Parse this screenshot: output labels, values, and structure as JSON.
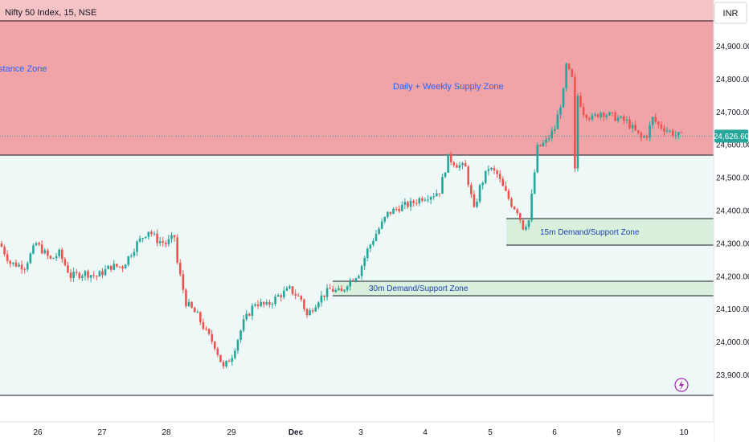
{
  "header": {
    "symbol_title": "Nifty 50 Index, 15, NSE",
    "currency": "INR"
  },
  "colors": {
    "up": "#26a69a",
    "down": "#ef5350",
    "supply_zone": "#f0a4a8",
    "supply_zone_top": "#f5c2c6",
    "demand_zone": "#d9f0dc",
    "lower_band": "#eef8f7",
    "price_tag": "#26a69a",
    "zone_text": "#2962ff"
  },
  "zones": {
    "resistance_label": "stance Zone",
    "supply_label": "Daily + Weekly Supply Zone",
    "demand_15m_label": "15m Demand/Support Zone",
    "demand_30m_label": "30m Demand/Support Zone"
  },
  "chart_data": {
    "type": "candlestick",
    "title": "Nifty 50 Index, 15, NSE",
    "y_ticks": [
      "24,900.00",
      "24,800.00",
      "24,700.00",
      "24,600.00",
      "24,500.00",
      "24,400.00",
      "24,300.00",
      "24,200.00",
      "24,100.00",
      "24,000.00",
      "23,900.00"
    ],
    "y_tick_values": [
      24900,
      24800,
      24700,
      24600,
      24500,
      24400,
      24300,
      24200,
      24100,
      24000,
      23900
    ],
    "ylim": [
      23800,
      25000
    ],
    "x_ticks": [
      "26",
      "27",
      "28",
      "29",
      "Dec",
      "3",
      "4",
      "5",
      "6",
      "9",
      "10"
    ],
    "last_price": "24,626.60",
    "last_price_value": 24626.6,
    "zones": [
      {
        "name": "Resistance Zone",
        "low": 24570,
        "high": 24965
      },
      {
        "name": "Daily + Weekly Supply Zone",
        "low": 24570,
        "high": 24965
      },
      {
        "name": "15m Demand/Support Zone",
        "low": 24292,
        "high": 24377
      },
      {
        "name": "30m Demand/Support Zone",
        "low": 24140,
        "high": 24185
      }
    ],
    "anchors": [
      [
        0,
        24290
      ],
      [
        3,
        24240
      ],
      [
        8,
        24230
      ],
      [
        12,
        24300
      ],
      [
        17,
        24250
      ],
      [
        20,
        24270
      ],
      [
        24,
        24200
      ],
      [
        29,
        24210
      ],
      [
        33,
        24200
      ],
      [
        38,
        24230
      ],
      [
        42,
        24230
      ],
      [
        47,
        24300
      ],
      [
        51,
        24340
      ],
      [
        54,
        24310
      ],
      [
        57,
        24300
      ],
      [
        60,
        24320
      ],
      [
        61,
        24240
      ],
      [
        64,
        24120
      ],
      [
        68,
        24080
      ],
      [
        71,
        24030
      ],
      [
        74,
        23990
      ],
      [
        77,
        23920
      ],
      [
        80,
        23960
      ],
      [
        84,
        24060
      ],
      [
        88,
        24120
      ],
      [
        92,
        24110
      ],
      [
        96,
        24140
      ],
      [
        100,
        24160
      ],
      [
        104,
        24130
      ],
      [
        106,
        24080
      ],
      [
        110,
        24130
      ],
      [
        114,
        24160
      ],
      [
        118,
        24150
      ],
      [
        120,
        24180
      ],
      [
        124,
        24210
      ],
      [
        127,
        24280
      ],
      [
        130,
        24330
      ],
      [
        134,
        24390
      ],
      [
        138,
        24410
      ],
      [
        142,
        24420
      ],
      [
        146,
        24440
      ],
      [
        150,
        24450
      ],
      [
        152,
        24460
      ],
      [
        155,
        24560
      ],
      [
        158,
        24540
      ],
      [
        161,
        24530
      ],
      [
        164,
        24400
      ],
      [
        166,
        24470
      ],
      [
        169,
        24530
      ],
      [
        172,
        24510
      ],
      [
        174,
        24470
      ],
      [
        177,
        24420
      ],
      [
        179,
        24400
      ],
      [
        181,
        24350
      ],
      [
        183,
        24370
      ],
      [
        186,
        24590
      ],
      [
        189,
        24610
      ],
      [
        192,
        24650
      ],
      [
        195,
        24760
      ],
      [
        196,
        24840
      ],
      [
        198,
        24800
      ],
      [
        199,
        24520
      ],
      [
        200,
        24750
      ],
      [
        202,
        24700
      ],
      [
        205,
        24680
      ],
      [
        208,
        24700
      ],
      [
        211,
        24690
      ],
      [
        214,
        24680
      ],
      [
        217,
        24670
      ],
      [
        220,
        24640
      ],
      [
        222,
        24620
      ],
      [
        224,
        24630
      ],
      [
        226,
        24680
      ],
      [
        228,
        24660
      ],
      [
        230,
        24650
      ],
      [
        232,
        24640
      ],
      [
        234,
        24630
      ],
      [
        236,
        24627
      ]
    ]
  }
}
